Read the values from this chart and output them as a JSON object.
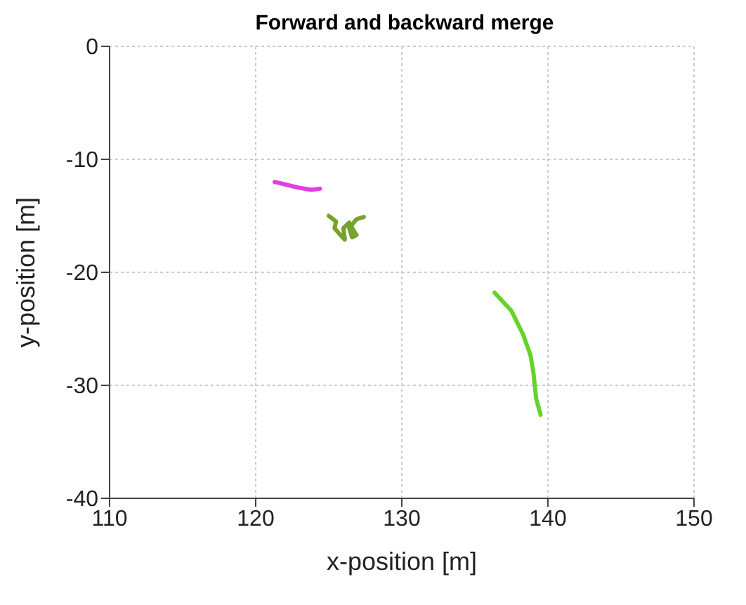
{
  "chart_data": {
    "type": "line",
    "title": "Forward and backward merge",
    "xlabel": "x-position [m]",
    "ylabel": "y-position [m]",
    "xlim": [
      110,
      150
    ],
    "xticks": [
      110,
      120,
      130,
      140,
      150
    ],
    "ylim": [
      -40,
      0
    ],
    "yticks": [
      -40,
      -30,
      -20,
      -10,
      0
    ],
    "grid": true,
    "marker": "none",
    "line_style": "solid",
    "series": [
      {
        "color": "#e040e0",
        "x": [
          121.3,
          122.9,
          123.8,
          124.4
        ],
        "values": [
          -12.0,
          -12.5,
          -12.7,
          -12.6
        ]
      },
      {
        "color": "#77a22e",
        "x": [
          125.0,
          125.5,
          125.4,
          125.8,
          126.1,
          126.0,
          126.4,
          126.7,
          126.9,
          126.6,
          126.4,
          126.9,
          127.4
        ],
        "values": [
          -15.0,
          -15.5,
          -16.1,
          -16.7,
          -17.1,
          -16.1,
          -15.6,
          -16.3,
          -16.7,
          -16.9,
          -16.1,
          -15.3,
          -15.1
        ]
      },
      {
        "color": "#66d32a",
        "x": [
          136.35,
          137.5,
          138.3,
          138.8,
          139.0,
          139.2,
          139.5
        ],
        "values": [
          -21.8,
          -23.4,
          -25.5,
          -27.3,
          -28.8,
          -31.2,
          -32.6
        ]
      }
    ]
  }
}
